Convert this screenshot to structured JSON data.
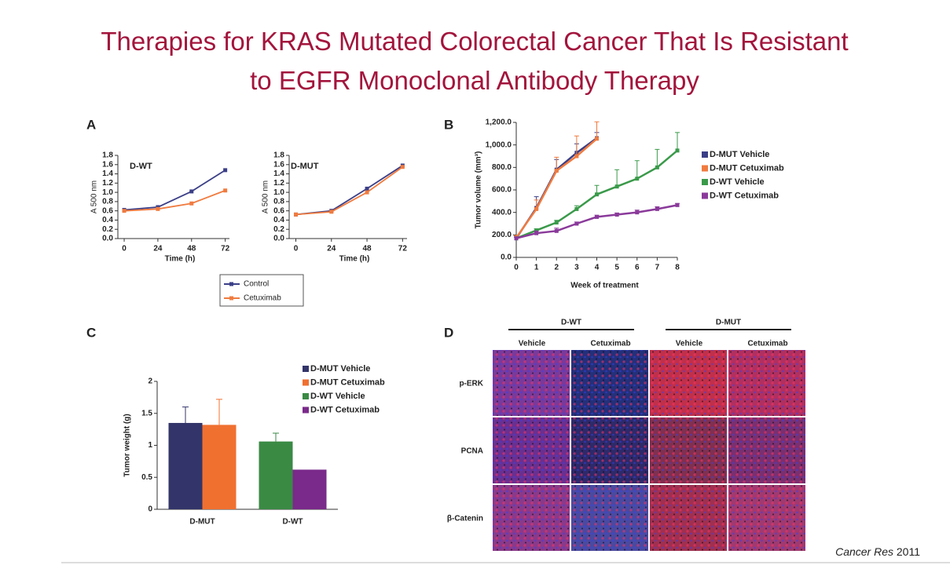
{
  "title": "Therapies for KRAS Mutated Colorectal Cancer That Is Resistant to EGFR Monoclonal Antibody Therapy",
  "citation": {
    "journal": "Cancer Res",
    "year": "2011"
  },
  "panels": [
    "A",
    "B",
    "C",
    "D"
  ],
  "chart_data": [
    {
      "type": "line",
      "title": "D-WT",
      "x_label": "Time (h)",
      "y_label": "A 500 nm",
      "x": [
        0,
        24,
        48,
        72
      ],
      "xlim": [
        -4.5,
        75
      ],
      "xticks": [
        0,
        24,
        48,
        72
      ],
      "ylim": [
        0,
        1.8
      ],
      "yticks": [
        {
          "value": 0,
          "label": "0.0"
        },
        0.2,
        0.4,
        0.6,
        0.8,
        {
          "value": 1,
          "label": "1.0"
        },
        1.2,
        1.4,
        1.6,
        1.8
      ],
      "legend": "below",
      "series": [
        {
          "name": "Control",
          "color": "#3b3f87",
          "values": [
            0.62,
            0.68,
            1.02,
            1.48
          ]
        },
        {
          "name": "Cetuximab",
          "color": "#f07b3f",
          "values": [
            0.6,
            0.64,
            0.76,
            1.04
          ]
        }
      ]
    },
    {
      "type": "line",
      "title": "D-MUT",
      "x_label": "Time (h)",
      "y_label": "A 500 nm",
      "x": [
        0,
        24,
        48,
        72
      ],
      "xlim": [
        -4.5,
        75
      ],
      "xticks": [
        0,
        24,
        48,
        72
      ],
      "ylim": [
        0,
        1.8
      ],
      "yticks": [
        {
          "value": 0,
          "label": "0.0"
        },
        0.2,
        0.4,
        0.6,
        0.8,
        {
          "value": 1,
          "label": "1.0"
        },
        1.2,
        1.4,
        1.6,
        1.8
      ],
      "series": [
        {
          "color": "#3b3f87",
          "values": [
            0.52,
            0.6,
            1.08,
            1.58
          ]
        },
        {
          "color": "#f07b3f",
          "values": [
            0.52,
            0.58,
            1.0,
            1.55
          ]
        }
      ]
    },
    {
      "type": "line",
      "x_label": "Week of treatment",
      "y_label": "Tumor volume (mm³)",
      "x": [
        0,
        1,
        2,
        3,
        4,
        5,
        6,
        7,
        8
      ],
      "xlim": [
        0,
        8
      ],
      "xticks": [
        0,
        1,
        2,
        3,
        4,
        5,
        6,
        7,
        8
      ],
      "ylim": [
        0,
        1200
      ],
      "yticks": [
        {
          "value": 0,
          "label": "0.0"
        },
        {
          "value": 200,
          "label": "200.0"
        },
        {
          "value": 400,
          "label": "400.0"
        },
        {
          "value": 600,
          "label": "600.0"
        },
        {
          "value": 800,
          "label": "800.0"
        },
        {
          "value": 1000,
          "label": "1,000.0"
        },
        {
          "value": 1200,
          "label": "1,200.0"
        }
      ],
      "legend": "right",
      "series": [
        {
          "name": "D-MUT Vehicle",
          "color": "#3b3f87",
          "values": [
            170,
            440,
            780,
            930,
            1060,
            null,
            null,
            null,
            null
          ],
          "errors": [
            20,
            100,
            90,
            80,
            50,
            null,
            null,
            null,
            null
          ]
        },
        {
          "name": "D-MUT Cetuximab",
          "color": "#f07b3f",
          "values": [
            175,
            430,
            770,
            900,
            1055,
            null,
            null,
            null,
            null
          ],
          "errors": [
            20,
            80,
            120,
            180,
            150,
            null,
            null,
            null,
            null
          ]
        },
        {
          "name": "D-WT Vehicle",
          "color": "#3a9a4a",
          "values": [
            170,
            240,
            310,
            430,
            560,
            630,
            700,
            800,
            950
          ],
          "errors": [
            10,
            15,
            20,
            30,
            80,
            150,
            160,
            160,
            160
          ]
        },
        {
          "name": "D-WT Cetuximab",
          "color": "#8a3a9a",
          "values": [
            170,
            215,
            235,
            300,
            360,
            380,
            400,
            430,
            465
          ],
          "errors": [
            10,
            20,
            25,
            15,
            15,
            15,
            20,
            20,
            15
          ]
        }
      ]
    },
    {
      "type": "bar",
      "y_label": "Tumor weight (g)",
      "categories": [
        "D-MUT",
        "D-WT"
      ],
      "ylim": [
        0,
        2
      ],
      "yticks": [
        0,
        0.5,
        1,
        1.5,
        2
      ],
      "legend": "top-right",
      "series": [
        {
          "name": "D-MUT Vehicle",
          "color": "#33356a",
          "values": [
            1.35,
            null
          ],
          "errors": [
            0.25,
            null
          ]
        },
        {
          "name": "D-MUT Cetuximab",
          "color": "#f07030",
          "values": [
            1.32,
            null
          ],
          "errors": [
            0.4,
            null
          ]
        },
        {
          "name": "D-WT Vehicle",
          "color": "#3a8a44",
          "values": [
            null,
            1.06
          ],
          "errors": [
            null,
            0.13
          ]
        },
        {
          "name": "D-WT Cetuximab",
          "color": "#7a2a8a",
          "values": [
            null,
            0.62
          ],
          "errors": [
            null,
            null
          ]
        }
      ]
    }
  ],
  "images": {
    "group_labels": [
      "D-WT",
      "D-MUT"
    ],
    "columns": [
      "Vehicle",
      "Cetuximab",
      "Vehicle",
      "Cetuximab"
    ],
    "rows": [
      "p-ERK",
      "PCNA",
      "β-Catenin"
    ]
  }
}
